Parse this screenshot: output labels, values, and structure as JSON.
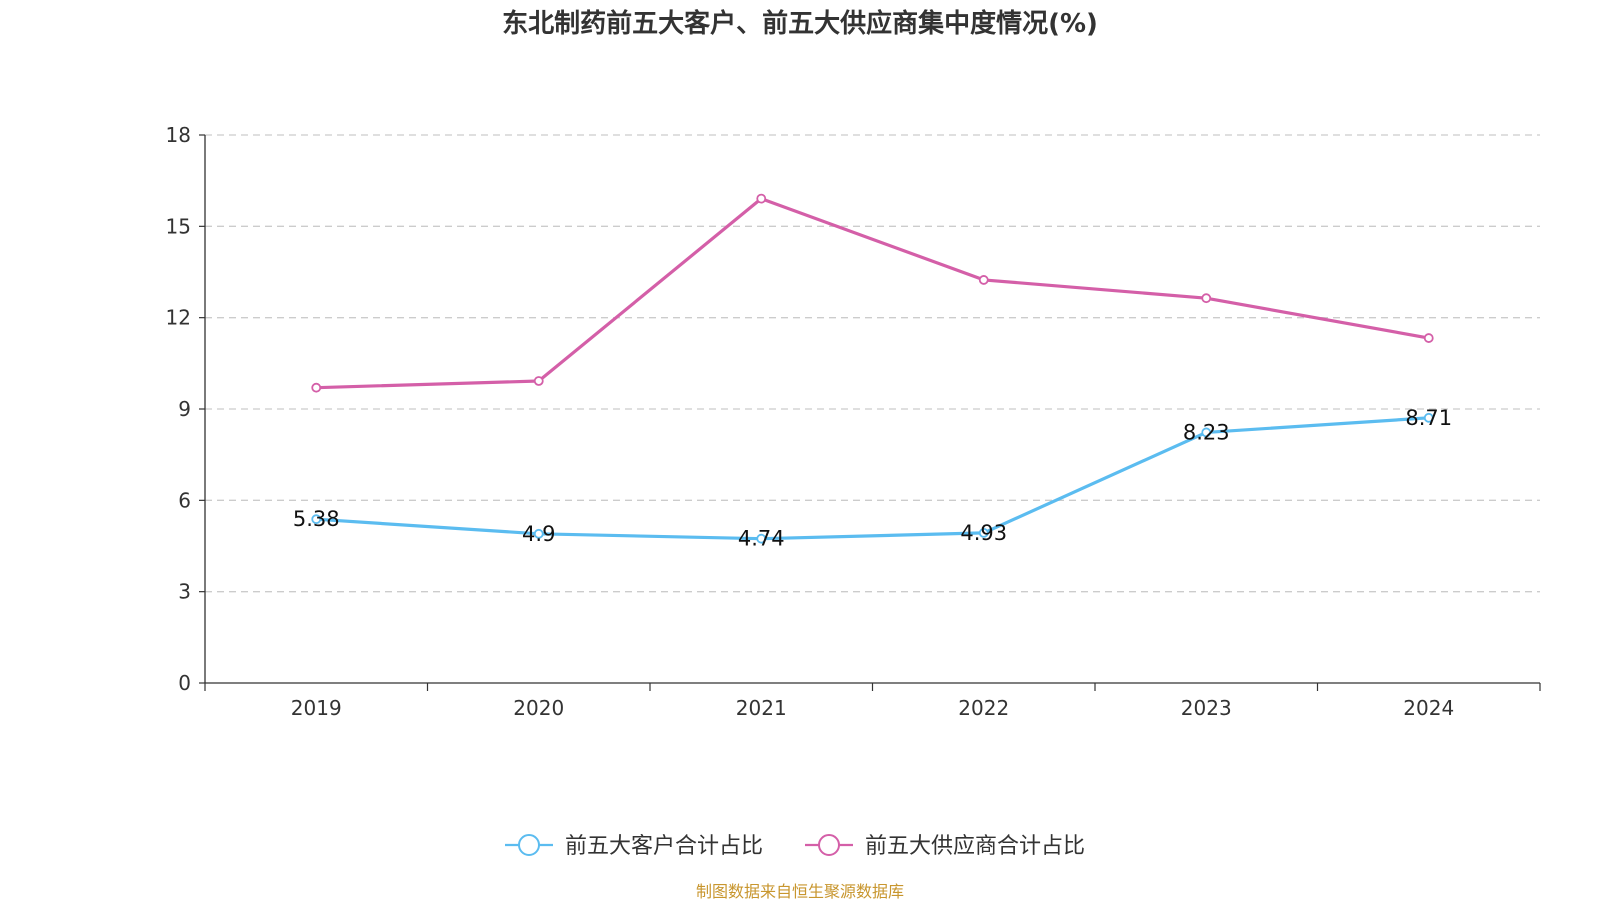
{
  "chart_data": {
    "type": "line",
    "title": "东北制药前五大客户、前五大供应商集中度情况(%)",
    "categories": [
      "2019",
      "2020",
      "2021",
      "2022",
      "2023",
      "2024"
    ],
    "ylim": [
      0,
      18
    ],
    "yticks": [
      "0",
      "3",
      "6",
      "9",
      "12",
      "15",
      "18"
    ],
    "grid": true,
    "legend_position": "bottom-center",
    "series": [
      {
        "name": "前五大客户合计占比",
        "color": "#5bbcf0",
        "values": [
          5.38,
          4.9,
          4.74,
          4.93,
          8.23,
          8.71
        ],
        "labels": [
          "5.38",
          "4.9",
          "4.74",
          "4.93",
          "8.23",
          "8.71"
        ],
        "show_labels": true
      },
      {
        "name": "前五大供应商合计占比",
        "color": "#d45fa8",
        "values": [
          9.7,
          9.92,
          15.91,
          13.24,
          12.64,
          11.33
        ],
        "show_labels": false
      }
    ],
    "source": "制图数据来自恒生聚源数据库",
    "source_color": "#c8962e"
  }
}
